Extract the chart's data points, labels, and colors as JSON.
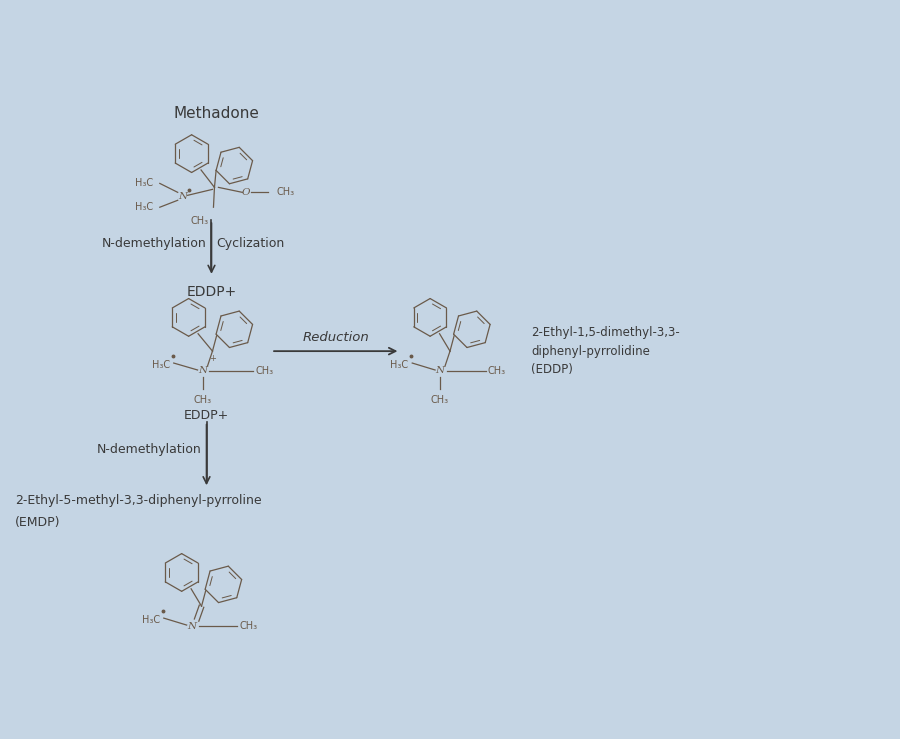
{
  "background_color": "#c5d5e4",
  "text_color": "#3a3a3a",
  "struct_color": "#6a5a4a",
  "fig_width": 9.0,
  "fig_height": 7.39,
  "dpi": 100,
  "labels": {
    "methadone": "Methadone",
    "eddp_plus_label": "EDDP+",
    "reaction1": "N-demethylation",
    "reaction1b": "Cyclization",
    "reaction2": "Reduction",
    "reaction3": "N-demethylation",
    "eddp_struct_label": "EDDP+",
    "eddp_product_line1": "2-Ethyl-1,5-dimethyl-3,3-",
    "eddp_product_line2": "diphenyl-pyrrolidine",
    "eddp_product_line3": "(EDDP)",
    "emdp_line1": "2-Ethyl-5-methyl-3,3-diphenyl-pyrroline",
    "emdp_line2": "(EMDP)"
  }
}
